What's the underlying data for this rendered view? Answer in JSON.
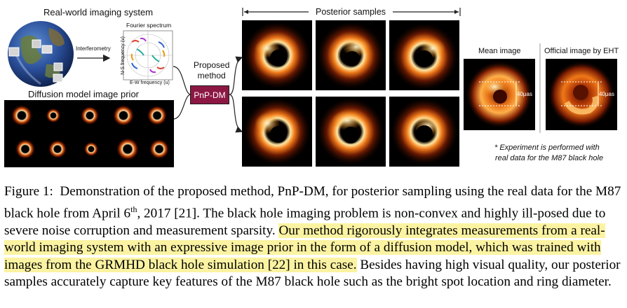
{
  "figure": {
    "real_world_title": "Real-world imaging system",
    "interferometry": "Interferometry",
    "fourier_spectrum": "Fourier spectrum",
    "ns_freq": "N-S frequency (v)",
    "ew_freq": "E-W frequency (u)",
    "diffusion_title": "Diffusion model image prior",
    "proposed_method": [
      "Proposed",
      "method"
    ],
    "pnp_dm": "PnP-DM",
    "posterior_samples": "Posterior samples",
    "mean_image": "Mean image",
    "official_image": "Official image by EHT",
    "scale": "40μas",
    "note_line1": "* Experiment is performed with",
    "note_line2": "real data for the M87 black hole"
  },
  "caption": {
    "label": "Figure 1:",
    "part1": "Demonstration of the proposed method, PnP-DM, for posterior sampling using the real data for the M87 black hole from April 6",
    "sup": "th",
    "part2": ", 2017 [21]. The black hole imaging problem is non-convex and highly ill-posed due to severe noise corruption and measurement sparsity.",
    "highlight": "Our method rigorously integrates measurements from a real-world imaging system with an expressive image prior in the form of a diffusion model, which was trained with images from the GRMHD black hole simulation [22] in this case.",
    "part3": "Besides having high visual quality, our posterior samples accurately capture key features of the M87 black hole such as the bright spot location and ring diameter."
  },
  "colors": {
    "pnp_box": "#8c1743",
    "highlight": "#fbf3a2"
  }
}
